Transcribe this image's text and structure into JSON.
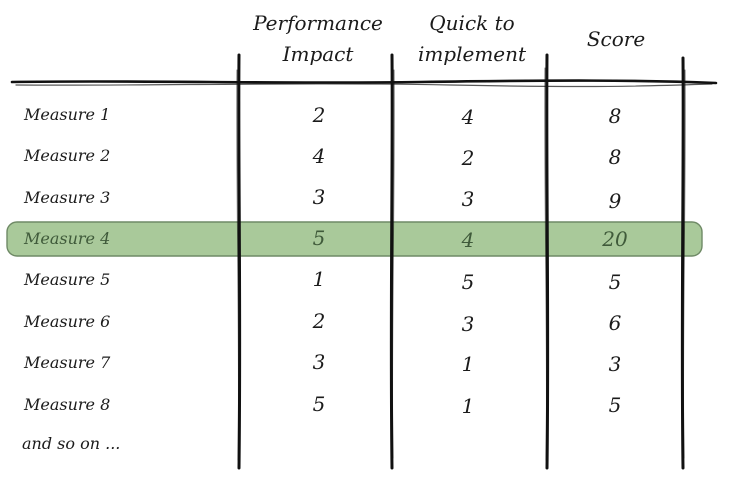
{
  "table": {
    "headers": {
      "performance_line1": "Performance",
      "performance_line2": "Impact",
      "quick_line1": "Quick to",
      "quick_line2": "implement",
      "score": "Score"
    },
    "rows": [
      {
        "label": "Measure 1",
        "performance": "2",
        "quick": "4",
        "score": "8"
      },
      {
        "label": "Measure 2",
        "performance": "4",
        "quick": "2",
        "score": "8"
      },
      {
        "label": "Measure 3",
        "performance": "3",
        "quick": "3",
        "score": "9"
      },
      {
        "label": "Measure 4",
        "performance": "5",
        "quick": "4",
        "score": "20"
      },
      {
        "label": "Measure 5",
        "performance": "1",
        "quick": "5",
        "score": "5"
      },
      {
        "label": "Measure 6",
        "performance": "2",
        "quick": "3",
        "score": "6"
      },
      {
        "label": "Measure 7",
        "performance": "3",
        "quick": "1",
        "score": "3"
      },
      {
        "label": "Measure 8",
        "performance": "5",
        "quick": "1",
        "score": "5"
      }
    ],
    "highlighted_row": "Measure 4",
    "footer": "and so on ..."
  },
  "colors": {
    "highlight_fill": "#a9c99a",
    "highlight_stroke": "#6f8a66",
    "ink": "#1b1b1b",
    "highlight_text": "#3f5a3a"
  }
}
